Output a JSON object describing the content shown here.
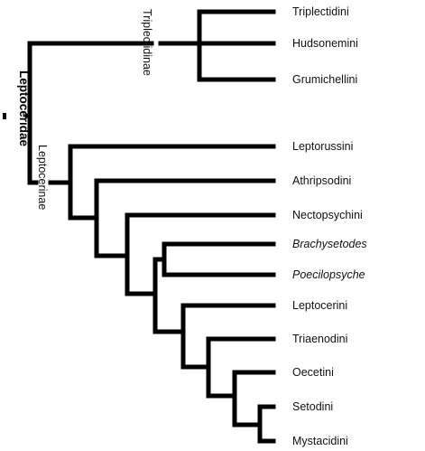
{
  "family": "Leptoceridae",
  "subfamilies": [
    {
      "id": "triplectidinae",
      "name": "Triplectidinae"
    },
    {
      "id": "leptocerinae",
      "name": "Leptocerinae"
    }
  ],
  "taxa": [
    {
      "id": "triplectidini",
      "label": "Triplectidini",
      "italic": false
    },
    {
      "id": "hudsonemini",
      "label": "Hudsonemini",
      "italic": false
    },
    {
      "id": "grumichellini",
      "label": "Grumichellini",
      "italic": false
    },
    {
      "id": "leptorussini",
      "label": "Leptorussini",
      "italic": false
    },
    {
      "id": "athripsodini",
      "label": "Athripsodini",
      "italic": false
    },
    {
      "id": "nectopsychini",
      "label": "Nectopsychini",
      "italic": false
    },
    {
      "id": "brachysetodes",
      "label": "Brachysetodes",
      "italic": true
    },
    {
      "id": "poecilopsyche",
      "label": "Poecilopsyche",
      "italic": true
    },
    {
      "id": "leptocerini",
      "label": "Leptocerini",
      "italic": false
    },
    {
      "id": "triaenodini",
      "label": "Triaenodini",
      "italic": false
    },
    {
      "id": "oecetini",
      "label": "Oecetini",
      "italic": false
    },
    {
      "id": "setodini",
      "label": "Setodini",
      "italic": false
    },
    {
      "id": "mystacidini",
      "label": "Mystacidini",
      "italic": false
    }
  ],
  "tree": "((Triplectidini,Hudsonemini,Grumichellini)Triplectidinae,(Leptorussini,(Athripsodini,(Nectopsychini,((Brachysetodes,Poecilopsyche),(Leptocerini,(Triaenodini,(Oecetini,(Setodini,Mystacidini))))))))Leptocerinae)Leptoceridae",
  "colors": {
    "branch": "#000000",
    "text": "#111111",
    "background": "#ffffff"
  }
}
